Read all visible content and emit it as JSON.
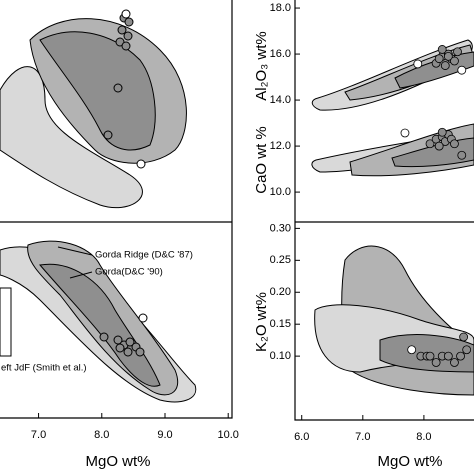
{
  "chart_data": [
    {
      "type": "scatter",
      "xlabel": "MgO wt%",
      "xlim": [
        6.39,
        10.06
      ],
      "xticks": [
        {
          "value": 7,
          "label": "7.0"
        },
        {
          "value": 8,
          "label": "8.0"
        },
        {
          "value": 9,
          "label": "9.0"
        },
        {
          "value": 10,
          "label": "10.0"
        }
      ],
      "annotations": [
        "Gorda Ridge (D&C '87)",
        "Gorda(D&C '90)",
        "eft JdF (Smith et al.)"
      ]
    },
    {
      "type": "scatter",
      "ylabels": [
        "CaO wt %",
        "Al₂O₃ wt%"
      ],
      "xlim": [
        5.89,
        8.82
      ],
      "ylim": [
        8.7,
        18.35
      ],
      "yticks": [
        {
          "value": 10,
          "label": "10.0"
        },
        {
          "value": 12,
          "label": "12.0"
        },
        {
          "value": 14,
          "label": "14.0"
        },
        {
          "value": 16,
          "label": "16.0"
        },
        {
          "value": 18,
          "label": "18.0"
        }
      ],
      "series": [
        {
          "color": "#8c8c8c",
          "x": [
            8.2,
            8.3,
            8.4,
            8.45,
            8.5,
            8.35,
            8.25,
            8.55,
            8.3,
            8.4
          ],
          "values": [
            15.6,
            15.9,
            16.0,
            15.8,
            15.7,
            15.5,
            15.8,
            16.1,
            16.2,
            15.9
          ]
        },
        {
          "color": "#8c8c8c",
          "x": [
            8.1,
            8.2,
            8.3,
            8.35,
            8.4,
            8.45,
            8.5,
            8.25,
            8.3,
            8.62
          ],
          "values": [
            12.1,
            12.3,
            12.4,
            12.2,
            12.5,
            12.3,
            12.1,
            12.0,
            12.6,
            11.6
          ]
        },
        {
          "color": "#ffffff",
          "x": [
            7.9,
            8.62,
            7.69
          ],
          "values": [
            15.57,
            15.3,
            12.57
          ]
        }
      ]
    },
    {
      "type": "scatter",
      "ylabel": "K₂O wt%",
      "xlabel": "MgO wt%",
      "xlim": [
        5.89,
        8.82
      ],
      "ylim": [
        0,
        0.31
      ],
      "xticks": [
        {
          "value": 6,
          "label": "6.0"
        },
        {
          "value": 7,
          "label": "7.0"
        },
        {
          "value": 8,
          "label": "8.0"
        }
      ],
      "yticks": [
        {
          "value": 0.1,
          "label": "0.10"
        },
        0.15,
        {
          "value": 0.2,
          "label": "0.20"
        },
        0.25,
        {
          "value": 0.3,
          "label": "0.30"
        }
      ],
      "series": [
        {
          "color": "#8c8c8c",
          "x": [
            7.95,
            8.05,
            8.1,
            8.2,
            8.3,
            8.4,
            8.5,
            8.6,
            8.7,
            8.65
          ],
          "values": [
            0.1,
            0.1,
            0.1,
            0.09,
            0.1,
            0.1,
            0.09,
            0.1,
            0.11,
            0.13
          ]
        },
        {
          "color": "#ffffff",
          "x": [
            7.8
          ],
          "values": [
            0.11
          ]
        }
      ]
    }
  ]
}
